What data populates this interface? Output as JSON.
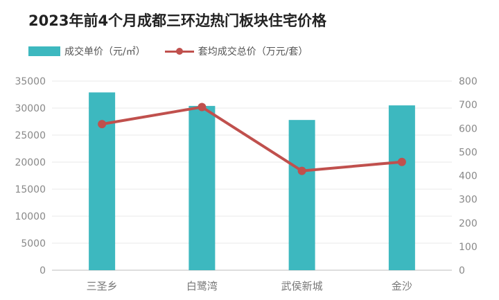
{
  "chart_data": {
    "type": "bar",
    "title": "2023年前4个月成都三环边热门板块住宅价格",
    "categories": [
      "三圣乡",
      "白鹭湾",
      "武侯新城",
      "金沙"
    ],
    "series": [
      {
        "name": "成交单价（元/㎡）",
        "type": "bar",
        "axis": "left",
        "values": [
          32900,
          30400,
          27800,
          30500
        ],
        "color": "#3db8bf"
      },
      {
        "name": "套均成交总价（万元/套）",
        "type": "line",
        "axis": "right",
        "values": [
          618,
          690,
          420,
          458
        ],
        "color": "#c0504d"
      }
    ],
    "y_left": {
      "min": 0,
      "max": 35000,
      "ticks": [
        0,
        5000,
        10000,
        15000,
        20000,
        25000,
        30000,
        35000
      ]
    },
    "y_right": {
      "min": 0,
      "max": 800,
      "ticks": [
        0,
        100,
        200,
        300,
        400,
        500,
        600,
        700,
        800
      ]
    },
    "grid": true,
    "legend_position": "top-left"
  }
}
